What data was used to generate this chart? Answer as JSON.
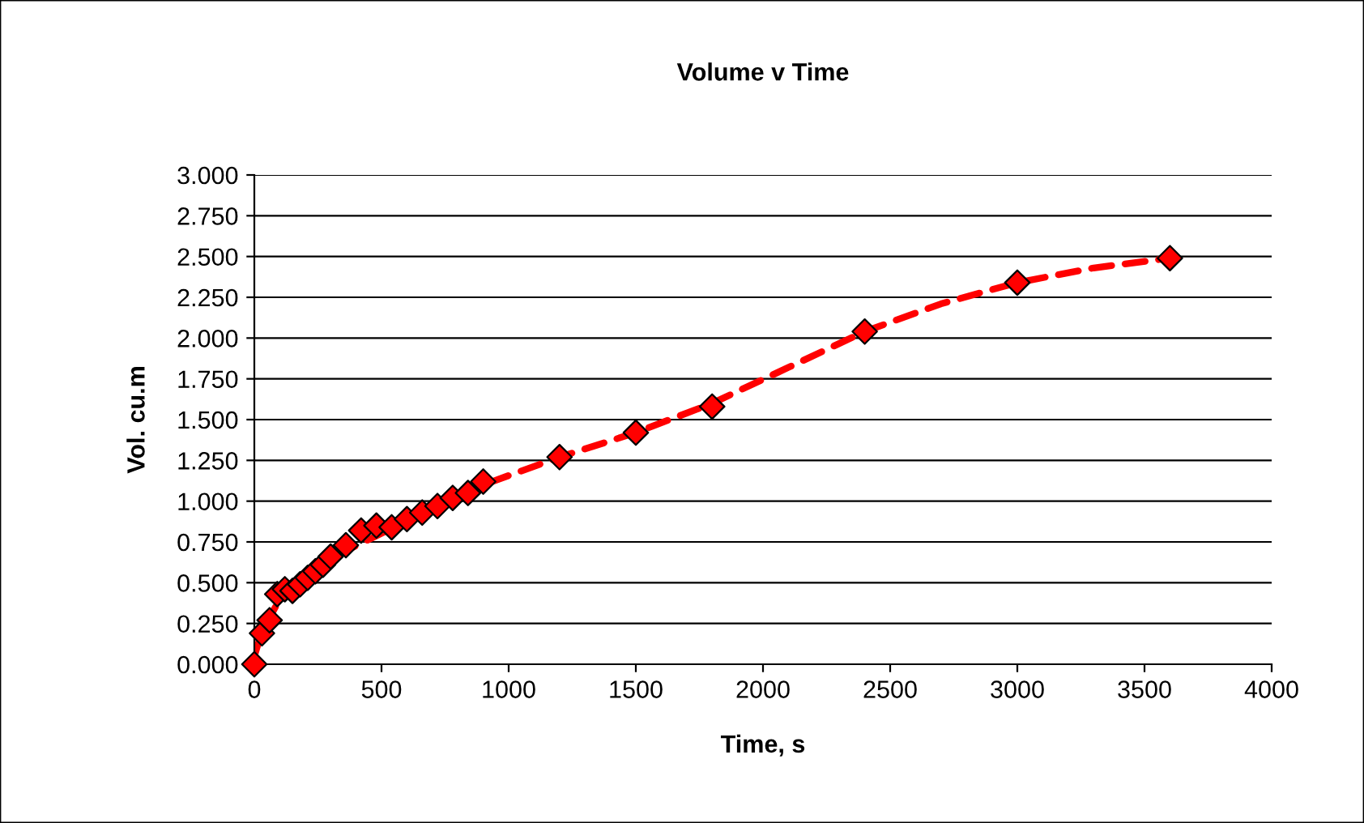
{
  "chart_data": {
    "type": "scatter",
    "title": "Volume v Time",
    "xlabel": "Time, s",
    "ylabel": "Vol. cu.m",
    "xlim": [
      0,
      4000
    ],
    "xticks": [
      0,
      500,
      1000,
      1500,
      2000,
      2500,
      3000,
      3500,
      4000
    ],
    "ylim": [
      0,
      3
    ],
    "yticks": [
      {
        "value": 0,
        "label": "0.000"
      },
      {
        "value": 0.25,
        "label": "0.250"
      },
      {
        "value": 0.5,
        "label": "0.500"
      },
      {
        "value": 0.75,
        "label": "0.750"
      },
      {
        "value": 1,
        "label": "1.000"
      },
      {
        "value": 1.25,
        "label": "1.250"
      },
      {
        "value": 1.5,
        "label": "1.500"
      },
      {
        "value": 1.75,
        "label": "1.750"
      },
      {
        "value": 2,
        "label": "2.000"
      },
      {
        "value": 2.25,
        "label": "2.250"
      },
      {
        "value": 2.5,
        "label": "2.500"
      },
      {
        "value": 2.75,
        "label": "2.750"
      },
      {
        "value": 3,
        "label": "3.000"
      }
    ],
    "grid": "y",
    "legend": false,
    "series": [
      {
        "type": "line",
        "color": "#ff0000",
        "line_style": "dashed",
        "marker": "none",
        "x": [
          0,
          30,
          100,
          300,
          600,
          900,
          1200,
          1500,
          1800,
          2100,
          2400,
          2700,
          3000,
          3300,
          3600
        ],
        "values": [
          0.05,
          0.2,
          0.4,
          0.65,
          0.88,
          1.1,
          1.27,
          1.42,
          1.6,
          1.82,
          2.04,
          2.21,
          2.34,
          2.43,
          2.49
        ]
      },
      {
        "color": "#ff0000",
        "marker": "diamond",
        "x": [
          0,
          30,
          60,
          90,
          120,
          150,
          180,
          210,
          240,
          270,
          300,
          360,
          420,
          480,
          540,
          600,
          660,
          720,
          780,
          840,
          900,
          1200,
          1500,
          1800,
          2400,
          3000,
          3600
        ],
        "values": [
          0,
          0.19,
          0.27,
          0.43,
          0.46,
          0.45,
          0.49,
          0.53,
          0.57,
          0.61,
          0.66,
          0.73,
          0.82,
          0.85,
          0.84,
          0.89,
          0.93,
          0.97,
          1.02,
          1.05,
          1.12,
          1.27,
          1.42,
          1.58,
          2.04,
          2.34,
          2.49
        ]
      }
    ]
  }
}
